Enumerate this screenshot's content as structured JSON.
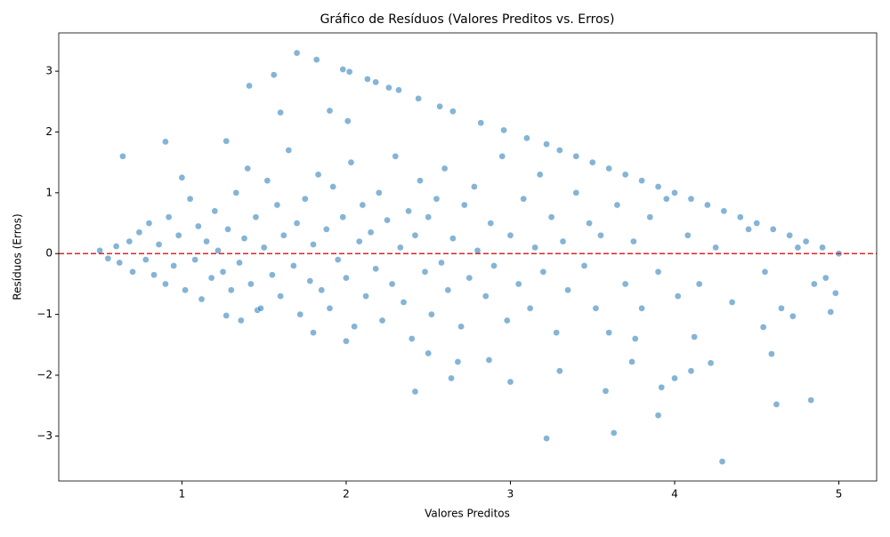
{
  "chart_data": {
    "type": "scatter",
    "title": "Gráfico de Resíduos (Valores Preditos vs. Erros)",
    "xlabel": "Valores Preditos",
    "ylabel": "Resíduos (Erros)",
    "color": "#1f77b4",
    "hline": {
      "value": 0,
      "color": "#d62728"
    },
    "xlim": [
      0.25,
      5.23
    ],
    "ylim": [
      -3.74,
      3.63
    ],
    "xticks": [
      1,
      2,
      3,
      4,
      5
    ],
    "yticks": [
      {
        "value": -3,
        "label": "−3"
      },
      {
        "value": -2,
        "label": "−2"
      },
      {
        "value": -1,
        "label": "−1"
      },
      0,
      1,
      2,
      3
    ],
    "x": [
      1.7,
      1.82,
      1.98,
      2.02,
      1.41,
      1.56,
      2.13,
      2.18,
      2.26,
      2.32,
      2.44,
      1.6,
      1.9,
      2.01,
      0.64,
      0.9,
      1.27,
      2.57,
      2.65,
      2.82,
      2.96,
      3.1,
      3.22,
      3.3,
      3.4,
      3.5,
      3.6,
      3.7,
      3.8,
      3.9,
      4.0,
      4.1,
      4.2,
      4.3,
      4.4,
      4.5,
      4.6,
      4.7,
      4.8,
      4.9,
      5.0,
      3.22,
      4.29,
      3.63,
      3.9,
      4.62,
      4.83,
      2.42,
      3.58,
      3.0,
      2.64,
      3.92,
      4.0,
      4.1,
      4.22,
      4.59,
      2.5,
      2.68,
      2.87,
      3.3,
      3.74,
      3.76,
      4.12,
      4.54,
      4.95,
      4.72,
      1.27,
      1.36,
      1.46,
      1.8,
      2.0,
      0.5,
      0.55,
      0.6,
      0.62,
      0.68,
      0.7,
      0.74,
      0.78,
      0.8,
      0.83,
      0.86,
      0.9,
      0.92,
      0.95,
      0.98,
      1.0,
      1.02,
      1.05,
      1.08,
      1.1,
      1.12,
      1.15,
      1.18,
      1.2,
      1.22,
      1.25,
      1.28,
      1.3,
      1.33,
      1.35,
      1.38,
      1.4,
      1.42,
      1.45,
      1.48,
      1.5,
      1.52,
      1.55,
      1.58,
      1.6,
      1.62,
      1.65,
      1.68,
      1.7,
      1.72,
      1.75,
      1.78,
      1.8,
      1.83,
      1.85,
      1.88,
      1.9,
      1.92,
      1.95,
      1.98,
      2.0,
      2.03,
      2.05,
      2.08,
      2.1,
      2.12,
      2.15,
      2.18,
      2.2,
      2.22,
      2.25,
      2.28,
      2.3,
      2.33,
      2.35,
      2.38,
      2.4,
      2.42,
      2.45,
      2.48,
      2.5,
      2.52,
      2.55,
      2.58,
      2.6,
      2.62,
      2.65,
      2.7,
      2.72,
      2.75,
      2.78,
      2.8,
      2.85,
      2.88,
      2.9,
      2.95,
      2.98,
      3.0,
      3.05,
      3.08,
      3.12,
      3.15,
      3.18,
      3.2,
      3.25,
      3.28,
      3.32,
      3.35,
      3.4,
      3.45,
      3.48,
      3.52,
      3.55,
      3.6,
      3.65,
      3.7,
      3.75,
      3.8,
      3.85,
      3.9,
      3.95,
      4.02,
      4.08,
      4.15,
      4.25,
      4.35,
      4.45,
      4.55,
      4.65,
      4.75,
      4.85,
      4.92,
      4.98
    ],
    "values": [
      3.3,
      3.19,
      3.03,
      2.99,
      2.76,
      2.94,
      2.87,
      2.82,
      2.73,
      2.69,
      2.55,
      2.32,
      2.35,
      2.18,
      1.6,
      1.84,
      1.85,
      2.42,
      2.34,
      2.15,
      2.03,
      1.9,
      1.8,
      1.7,
      1.6,
      1.5,
      1.4,
      1.3,
      1.2,
      1.1,
      1.0,
      0.9,
      0.8,
      0.7,
      0.6,
      0.5,
      0.4,
      0.3,
      0.2,
      0.1,
      0.0,
      -3.04,
      -3.42,
      -2.95,
      -2.66,
      -2.48,
      -2.41,
      -2.27,
      -2.26,
      -2.11,
      -2.05,
      -2.2,
      -2.05,
      -1.93,
      -1.8,
      -1.65,
      -1.64,
      -1.78,
      -1.75,
      -1.93,
      -1.78,
      -1.4,
      -1.37,
      -1.21,
      -0.96,
      -1.03,
      -1.02,
      -1.1,
      -0.93,
      -1.3,
      -1.44,
      0.05,
      -0.08,
      0.12,
      -0.15,
      0.2,
      -0.3,
      0.35,
      -0.1,
      0.5,
      -0.35,
      0.15,
      -0.5,
      0.6,
      -0.2,
      0.3,
      1.25,
      -0.6,
      0.9,
      -0.1,
      0.45,
      -0.75,
      0.2,
      -0.4,
      0.7,
      0.05,
      -0.3,
      0.4,
      -0.6,
      1.0,
      -0.15,
      0.25,
      1.4,
      -0.5,
      0.6,
      -0.9,
      0.1,
      1.2,
      -0.35,
      0.8,
      -0.7,
      0.3,
      1.7,
      -0.2,
      0.5,
      -1.0,
      0.9,
      -0.45,
      0.15,
      1.3,
      -0.6,
      0.4,
      -0.9,
      1.1,
      -0.1,
      0.6,
      -0.4,
      1.5,
      -1.2,
      0.2,
      0.8,
      -0.7,
      0.35,
      -0.25,
      1.0,
      -1.1,
      0.55,
      -0.5,
      1.6,
      0.1,
      -0.8,
      0.7,
      -1.4,
      0.3,
      1.2,
      -0.3,
      0.6,
      -1.0,
      0.9,
      -0.15,
      1.4,
      -0.6,
      0.25,
      -1.2,
      0.8,
      -0.4,
      1.1,
      0.05,
      -0.7,
      0.5,
      -0.2,
      1.6,
      -1.1,
      0.3,
      -0.5,
      0.9,
      -0.9,
      0.1,
      1.3,
      -0.3,
      0.6,
      -1.3,
      0.2,
      -0.6,
      1.0,
      -0.2,
      0.5,
      -0.9,
      0.3,
      -1.3,
      0.8,
      -0.5,
      0.2,
      -0.9,
      0.6,
      -0.3,
      0.9,
      -0.7,
      0.3,
      -0.5,
      0.1,
      -0.8,
      0.4,
      -0.3,
      -0.9,
      0.1,
      -0.5,
      -0.4,
      -0.65
    ]
  }
}
